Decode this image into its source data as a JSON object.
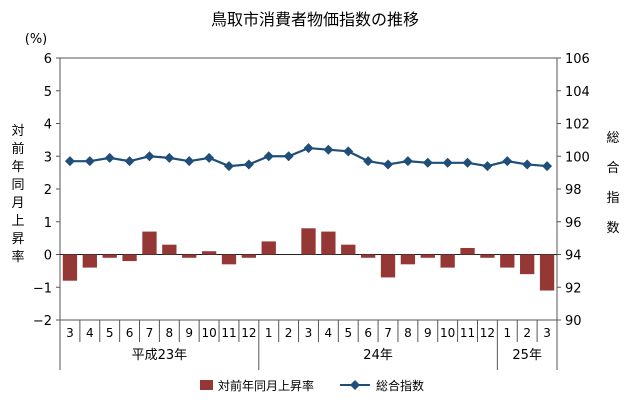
{
  "chart_data": {
    "type": "bar+line",
    "title": "鳥取市消費者物価指数の推移",
    "y_left": {
      "unit": "(%)",
      "label": "対前年同月上昇率",
      "range": [
        -2,
        6
      ],
      "ticks": [
        "6",
        "5",
        "4",
        "3",
        "2",
        "1",
        "0",
        "−1",
        "−2"
      ]
    },
    "y_right": {
      "label": "総合指数",
      "range": [
        90,
        106
      ],
      "ticks": [
        "106",
        "104",
        "102",
        "100",
        "98",
        "96",
        "94",
        "92",
        "90"
      ]
    },
    "categories": [
      "3",
      "4",
      "5",
      "6",
      "7",
      "8",
      "9",
      "10",
      "11",
      "12",
      "1",
      "2",
      "3",
      "4",
      "5",
      "6",
      "7",
      "8",
      "9",
      "10",
      "11",
      "12",
      "1",
      "2",
      "3"
    ],
    "groups": [
      {
        "label": "平成23年",
        "start": 0,
        "end": 9
      },
      {
        "label": "24年",
        "start": 10,
        "end": 21
      },
      {
        "label": "25年",
        "start": 22,
        "end": 24
      }
    ],
    "series": [
      {
        "name": "対前年同月上昇率",
        "type": "bar",
        "axis": "left",
        "color": "#953735",
        "values": [
          -0.8,
          -0.4,
          -0.1,
          -0.2,
          0.7,
          0.3,
          -0.1,
          0.1,
          -0.3,
          -0.1,
          0.4,
          0.0,
          0.8,
          0.7,
          0.3,
          -0.1,
          -0.7,
          -0.3,
          -0.1,
          -0.4,
          0.2,
          -0.1,
          -0.4,
          -0.6,
          -1.1
        ]
      },
      {
        "name": "総合指数",
        "type": "line",
        "axis": "right",
        "color": "#1f4e79",
        "values": [
          99.7,
          99.7,
          99.9,
          99.7,
          100.0,
          99.9,
          99.7,
          99.9,
          99.4,
          99.5,
          100.0,
          100.0,
          100.5,
          100.4,
          100.3,
          99.7,
          99.5,
          99.7,
          99.6,
          99.6,
          99.6,
          99.4,
          99.7,
          99.5,
          99.4
        ]
      }
    ]
  }
}
